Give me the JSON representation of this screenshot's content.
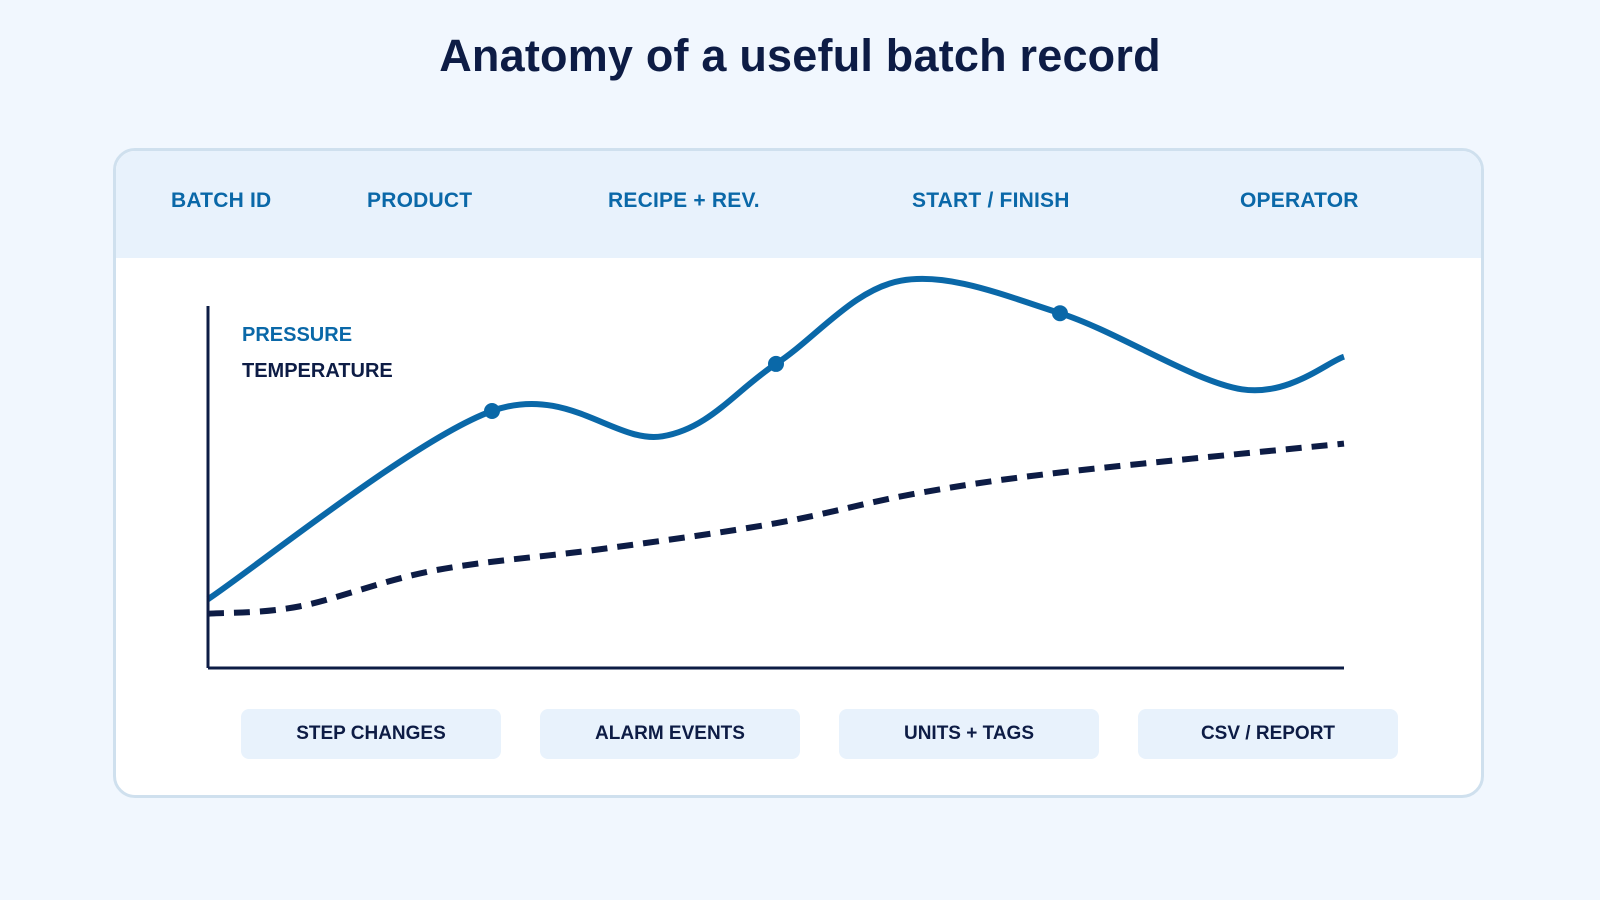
{
  "title": "Anatomy of a useful batch record",
  "header_fields": [
    "BATCH ID",
    "PRODUCT",
    "RECIPE + REV.",
    "START / FINISH",
    "OPERATOR"
  ],
  "legend": {
    "pressure": "PRESSURE",
    "temperature": "TEMPERATURE"
  },
  "chart_data": {
    "type": "line",
    "title": "",
    "xlabel": "",
    "ylabel": "",
    "grid": false,
    "legend_position": "top-left",
    "series": [
      {
        "name": "PRESSURE",
        "style": "solid",
        "color": "#0a68a8",
        "points": [
          [
            0,
            0.19
          ],
          [
            0.25,
            0.71
          ],
          [
            0.4,
            0.64
          ],
          [
            0.5,
            0.84
          ],
          [
            0.61,
            1.07
          ],
          [
            0.75,
            0.98
          ],
          [
            0.91,
            0.77
          ],
          [
            1.0,
            0.86
          ]
        ],
        "markers": [
          [
            0.25,
            0.71
          ],
          [
            0.5,
            0.84
          ],
          [
            0.75,
            0.98
          ]
        ]
      },
      {
        "name": "TEMPERATURE",
        "style": "dashed",
        "color": "#0d1c45",
        "points": [
          [
            0,
            0.15
          ],
          [
            0.08,
            0.17
          ],
          [
            0.2,
            0.27
          ],
          [
            0.35,
            0.33
          ],
          [
            0.5,
            0.4
          ],
          [
            0.62,
            0.48
          ],
          [
            0.75,
            0.54
          ],
          [
            1.0,
            0.62
          ]
        ]
      }
    ]
  },
  "feature_pills": [
    "STEP CHANGES",
    "ALARM EVENTS",
    "UNITS + TAGS",
    "CSV / REPORT"
  ],
  "colors": {
    "background": "#f1f7fe",
    "card": "#ffffff",
    "band": "#e8f2fc",
    "accent": "#0a68a8",
    "navy": "#0d1c45"
  }
}
